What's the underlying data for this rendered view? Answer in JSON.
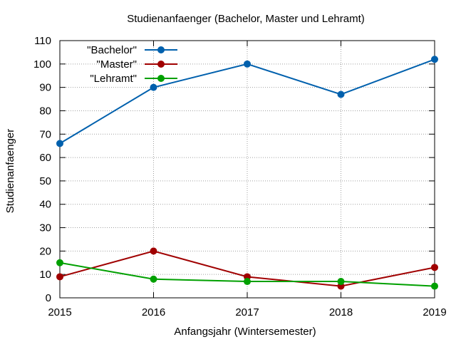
{
  "chart_data": {
    "type": "line",
    "title": "Studienanfaenger (Bachelor, Master und Lehramt)",
    "xlabel": "Anfangsjahr (Wintersemester)",
    "ylabel": "Studienanfaenger",
    "x": [
      2015,
      2016,
      2017,
      2018,
      2019
    ],
    "xlim": [
      2015,
      2019
    ],
    "ylim": [
      0,
      110
    ],
    "xticks": [
      "2015",
      "2016",
      "2017",
      "2018",
      "2019"
    ],
    "yticks": [
      "0",
      "10",
      "20",
      "30",
      "40",
      "50",
      "60",
      "70",
      "80",
      "90",
      "100",
      "110"
    ],
    "grid": true,
    "legend_position": "top-left",
    "series": [
      {
        "name": "\"Bachelor\"",
        "color": "#0060ad",
        "values": [
          66,
          90,
          100,
          87,
          102
        ]
      },
      {
        "name": "\"Master\"",
        "color": "#a00000",
        "values": [
          9,
          20,
          9,
          5,
          13
        ]
      },
      {
        "name": "\"Lehramt\"",
        "color": "#00a000",
        "values": [
          15,
          8,
          7,
          7,
          5
        ]
      }
    ]
  }
}
